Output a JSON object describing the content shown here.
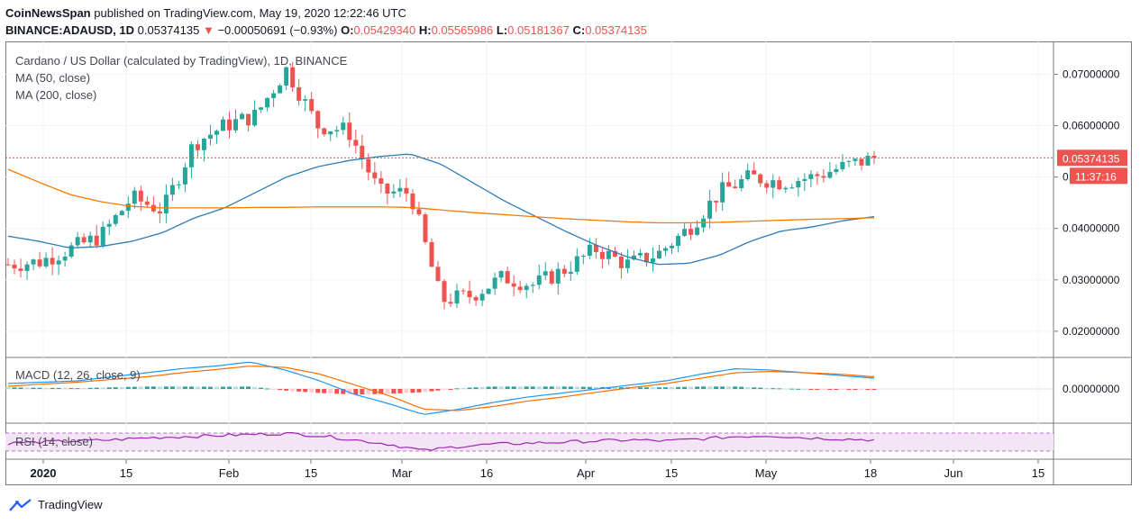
{
  "header": {
    "publisher": "CoinNewsSpan",
    "published_text": "published on TradingView.com, May 19, 2020 12:22:46 UTC",
    "symbol": "BINANCE:ADAUSD, 1D",
    "last": "0.05374135",
    "change_arrow": "▼",
    "change": "−0.00050691 (−0.93%)",
    "o_label": "O:",
    "o": "0.05429340",
    "h_label": "H:",
    "h": "0.05565986",
    "l_label": "L:",
    "l": "0.05181367",
    "c_label": "C:",
    "c": "0.05374135"
  },
  "legend": {
    "title": "Cardano / US Dollar (calculated by TradingView), 1D, BINANCE",
    "ma50": "MA (50, close)",
    "ma200": "MA (200, close)",
    "macd": "MACD (12, 26, close, 9)",
    "rsi": "RSI (14, close)"
  },
  "price_badge": "0.05374135",
  "time_badge": "11:37:16",
  "footer": {
    "brand": "TradingView",
    "logo_icon": "tradingview-logo-icon"
  },
  "colors": {
    "up": "#26a69a",
    "down": "#ef5350",
    "ma50": "#2e7bb6",
    "ma200": "#f57c00",
    "macd": "#2196f3",
    "signal": "#ff6d00",
    "rsi": "#9c27b0"
  },
  "chart_data": {
    "type": "candlestick",
    "title": "Cardano / US Dollar (calculated by TradingView), 1D, BINANCE",
    "y_ticks": [
      "0.07000000",
      "0.06000000",
      "0.05000000",
      "0.04000000",
      "0.03000000",
      "0.02000000"
    ],
    "ylim": [
      0.017,
      0.075
    ],
    "x_ticks": [
      "2020",
      "15",
      "Feb",
      "15",
      "Mar",
      "16",
      "Apr",
      "15",
      "May",
      "18",
      "Jun",
      "15"
    ],
    "macd_tick": "0.00000000",
    "last_price": 0.05374135,
    "series": [
      {
        "name": "Candles (close)",
        "x": [
          0,
          5,
          10,
          15,
          20,
          25,
          30,
          35,
          40,
          45,
          50,
          55,
          60,
          65,
          70,
          75,
          80,
          85,
          90,
          95,
          100,
          105,
          110,
          115,
          120,
          125,
          130,
          135,
          140
        ],
        "values": [
          0.033,
          0.0335,
          0.036,
          0.0385,
          0.046,
          0.0435,
          0.0565,
          0.06,
          0.062,
          0.071,
          0.06,
          0.059,
          0.047,
          0.047,
          0.026,
          0.027,
          0.0305,
          0.029,
          0.032,
          0.036,
          0.033,
          0.035,
          0.04,
          0.047,
          0.05,
          0.049,
          0.05,
          0.052,
          0.0537
        ]
      },
      {
        "name": "MA (50, close)",
        "values": [
          0.0385,
          0.0375,
          0.0362,
          0.0365,
          0.0375,
          0.0392,
          0.042,
          0.044,
          0.047,
          0.05,
          0.052,
          0.0532,
          0.054,
          0.0545,
          0.0525,
          0.049,
          0.0455,
          0.0425,
          0.0395,
          0.0368,
          0.0345,
          0.033,
          0.0332,
          0.0348,
          0.0375,
          0.0395,
          0.0403,
          0.0415,
          0.0423
        ]
      },
      {
        "name": "MA (200, close)",
        "values": [
          0.0515,
          0.049,
          0.0466,
          0.0452,
          0.0443,
          0.044,
          0.044,
          0.044,
          0.0441,
          0.0441,
          0.0442,
          0.0442,
          0.0442,
          0.0441,
          0.0436,
          0.0431,
          0.0427,
          0.0423,
          0.0419,
          0.0416,
          0.0413,
          0.0411,
          0.0411,
          0.0412,
          0.0414,
          0.0416,
          0.0418,
          0.0419,
          0.0421
        ]
      }
    ]
  }
}
